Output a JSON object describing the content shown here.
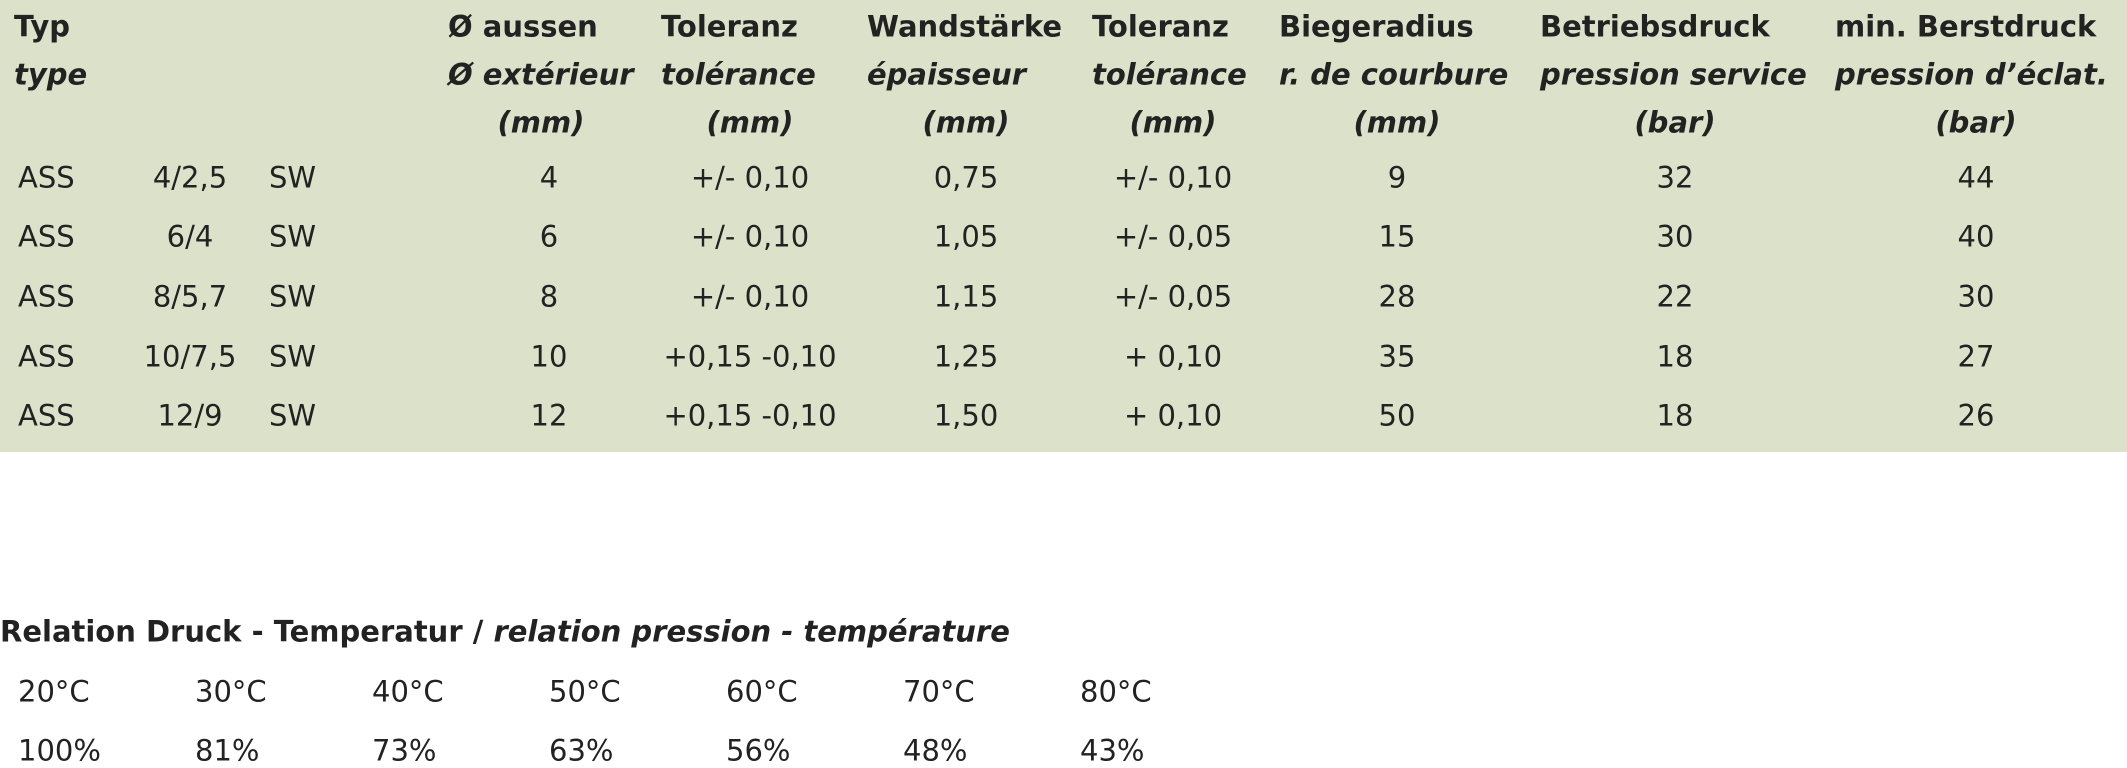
{
  "table": {
    "header": [
      {
        "lines": [
          "Typ",
          "type"
        ]
      },
      {
        "lines": [
          "Ø aussen",
          "Ø extérieur",
          "(mm)"
        ]
      },
      {
        "lines": [
          "Toleranz",
          "tolérance",
          "(mm)"
        ]
      },
      {
        "lines": [
          "Wandstärke",
          "épaisseur",
          "(mm)"
        ]
      },
      {
        "lines": [
          "Toleranz",
          "tolérance",
          "(mm)"
        ]
      },
      {
        "lines": [
          "Biegeradius",
          "r. de courbure",
          "(mm)"
        ]
      },
      {
        "lines": [
          "Betriebsdruck",
          "pression service",
          "(bar)"
        ]
      },
      {
        "lines": [
          "min. Berstdruck",
          "pression d’éclat.",
          "(bar)"
        ]
      }
    ],
    "rows": [
      [
        "ASS",
        "4/2,5",
        "SW",
        "4",
        "+/- 0,10",
        "0,75",
        "+/- 0,10",
        "9",
        "32",
        "44"
      ],
      [
        "ASS",
        "6/4",
        "SW",
        "6",
        "+/- 0,10",
        "1,05",
        "+/- 0,05",
        "15",
        "30",
        "40"
      ],
      [
        "ASS",
        "8/5,7",
        "SW",
        "8",
        "+/- 0,10",
        "1,15",
        "+/- 0,05",
        "28",
        "22",
        "30"
      ],
      [
        "ASS",
        "10/7,5",
        "SW",
        "10",
        "+0,15 -0,10",
        "1,25",
        "+ 0,10",
        "35",
        "18",
        "27"
      ],
      [
        "ASS",
        "12/9",
        "SW",
        "12",
        "+0,15 -0,10",
        "1,50",
        "+ 0,10",
        "50",
        "18",
        "26"
      ]
    ]
  },
  "relation": {
    "title": "Relation Druck - Temperatur /",
    "title_italic": "relation pression - température",
    "temperatures": [
      "20°C",
      "30°C",
      "40°C",
      "50°C",
      "60°C",
      "70°C",
      "80°C"
    ],
    "percentages": [
      "100%",
      "81%",
      "73%",
      "63%",
      "56%",
      "48%",
      "43%"
    ]
  }
}
